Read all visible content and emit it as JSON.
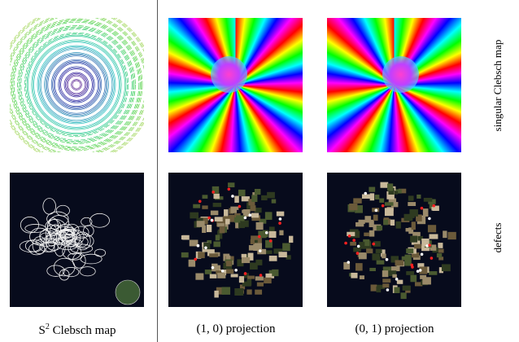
{
  "captions": {
    "left": {
      "symbol": "S",
      "superscript": "2",
      "text": "Clebsch map"
    },
    "middle": "(1, 0) projection",
    "right": "(0, 1) projection"
  },
  "row_labels": [
    "singular Clebsch map",
    "defects"
  ]
}
